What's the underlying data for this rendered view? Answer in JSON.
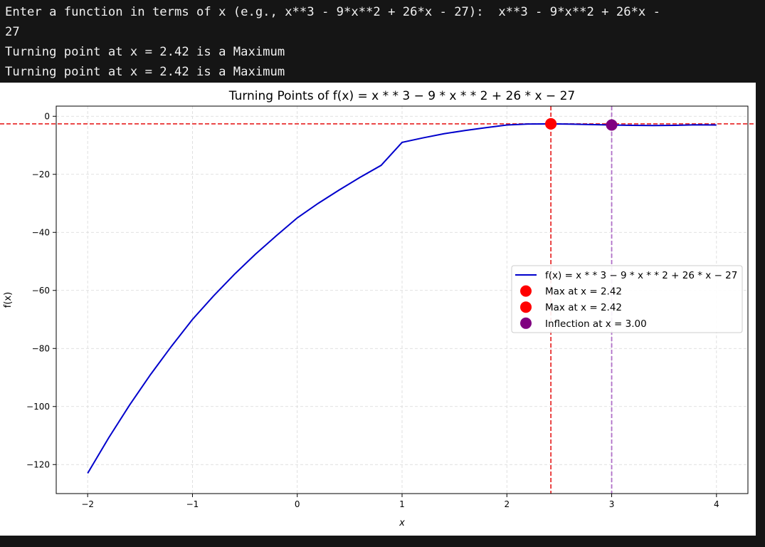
{
  "terminal": {
    "prompt": "Enter a function in terms of x (e.g., x**3 - 9*x**2 + 26*x - 27):",
    "input": "x**3 - 9*x**2 + 26*x -",
    "input_cont": "27",
    "output": [
      "Turning point at x = 2.42 is a Maximum",
      "Turning point at x = 2.42 is a Maximum"
    ]
  },
  "chart_data": {
    "type": "line",
    "title": "Turning Points of f(x) = x * * 3 − 9 * x * * 2 + 26 * x − 27",
    "xlabel": "x",
    "ylabel": "f(x)",
    "xlim": [
      -2.3,
      4.3
    ],
    "ylim": [
      -130,
      3.5
    ],
    "xticks": [
      -2,
      -1,
      0,
      1,
      2,
      3,
      4
    ],
    "yticks": [
      0,
      -20,
      -40,
      -60,
      -80,
      -100,
      -120
    ],
    "xtick_labels": [
      "−2",
      "−1",
      "0",
      "1",
      "2",
      "3",
      "4"
    ],
    "ytick_labels": [
      "0",
      "−20",
      "−40",
      "−60",
      "−80",
      "−100",
      "−120"
    ],
    "grid": true,
    "legend_position": "center-right",
    "series": [
      {
        "name": "f(x) = x * * 3 − 9 * x * * 2 + 26 * x − 27",
        "color": "#0000cc",
        "x": [
          -2,
          -1.8,
          -1.6,
          -1.4,
          -1.2,
          -1,
          -0.8,
          -0.6,
          -0.4,
          -0.2,
          0,
          0.2,
          0.4,
          0.6,
          0.8,
          1,
          1.2,
          1.4,
          1.6,
          1.8,
          2,
          2.2,
          2.4,
          2.6,
          2.8,
          3,
          3.2,
          3.4,
          3.6,
          3.8,
          4
        ],
        "y": [
          -123,
          -110.83,
          -99.5,
          -88.98,
          -79.22,
          -70,
          -61.95,
          -54.46,
          -47.54,
          -41.17,
          -35,
          -29.99,
          -25.4,
          -21.02,
          -16.91,
          -9,
          -7.43,
          -6.02,
          -4.9,
          -3.93,
          -3,
          -2.67,
          -2.61,
          -2.69,
          -2.85,
          -3,
          -3.13,
          -3.19,
          -3.14,
          -2.94,
          -3
        ]
      }
    ],
    "points": [
      {
        "name": "Max at x = 2.42",
        "x": 2.42,
        "y": -2.6,
        "color": "#ff0000"
      },
      {
        "name": "Max at x = 2.42",
        "x": 2.42,
        "y": -2.6,
        "color": "#ff0000"
      },
      {
        "name": "Inflection at x = 3.00",
        "x": 3.0,
        "y": -3.0,
        "color": "#800080"
      }
    ],
    "reference_lines": [
      {
        "orientation": "horizontal",
        "value": -2.6,
        "color": "#e83030"
      },
      {
        "orientation": "vertical",
        "value": 2.42,
        "color": "#e83030"
      },
      {
        "orientation": "vertical",
        "value": 3.0,
        "color": "#b070c8"
      }
    ],
    "legend": {
      "entries": [
        {
          "label": "f(x) = x * * 3 − 9 * x * * 2 + 26 * x − 27",
          "kind": "line",
          "color": "#0000cc"
        },
        {
          "label": "Max at x = 2.42",
          "kind": "marker",
          "color": "#ff0000"
        },
        {
          "label": "Max at x = 2.42",
          "kind": "marker",
          "color": "#ff0000"
        },
        {
          "label": "Inflection at x = 3.00",
          "kind": "marker",
          "color": "#800080"
        }
      ]
    }
  }
}
